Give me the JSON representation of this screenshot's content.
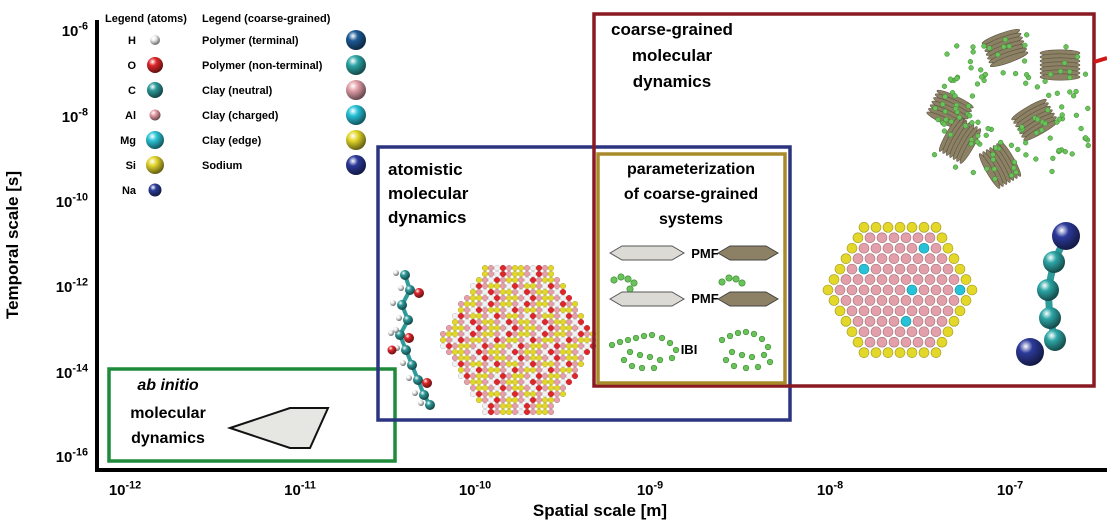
{
  "axes": {
    "y_label": "Temporal scale [s]",
    "x_label": "Spatial scale [m]",
    "y_ticks": [
      {
        "base": "10",
        "exp": "-6"
      },
      {
        "base": "10",
        "exp": "-8"
      },
      {
        "base": "10",
        "exp": "-10"
      },
      {
        "base": "10",
        "exp": "-12"
      },
      {
        "base": "10",
        "exp": "-14"
      },
      {
        "base": "10",
        "exp": "-16"
      }
    ],
    "x_ticks": [
      {
        "base": "10",
        "exp": "-12"
      },
      {
        "base": "10",
        "exp": "-11"
      },
      {
        "base": "10",
        "exp": "-10"
      },
      {
        "base": "10",
        "exp": "-9"
      },
      {
        "base": "10",
        "exp": "-8"
      },
      {
        "base": "10",
        "exp": "-7"
      }
    ]
  },
  "legend_atoms": {
    "title": "Legend (atoms)",
    "items": [
      {
        "label": "H",
        "color": "#f2f2f2"
      },
      {
        "label": "O",
        "color": "#e0262a"
      },
      {
        "label": "C",
        "color": "#2e9a9a"
      },
      {
        "label": "Al",
        "color": "#e8a0a8"
      },
      {
        "label": "Mg",
        "color": "#2cc6d6"
      },
      {
        "label": "Si",
        "color": "#e2d52c"
      },
      {
        "label": "Na",
        "color": "#2c3d9a"
      }
    ]
  },
  "legend_cg": {
    "title": "Legend (coarse-grained)",
    "items": [
      {
        "label": "Polymer (terminal)",
        "color": "#1d5a96"
      },
      {
        "label": "Polymer (non-terminal)",
        "color": "#2ea6a6"
      },
      {
        "label": "Clay (neutral)",
        "color": "#e3a0aa"
      },
      {
        "label": "Clay (charged)",
        "color": "#27c2d8"
      },
      {
        "label": "Clay (edge)",
        "color": "#e3d72a"
      },
      {
        "label": "Sodium",
        "color": "#2c3a9a"
      }
    ]
  },
  "regions": {
    "abinitio": {
      "line1": "ab initio",
      "line2": "molecular",
      "line3": "dynamics",
      "color": "#1f8a3a"
    },
    "atomistic": {
      "line1": "atomistic",
      "line2": "molecular",
      "line3": "dynamics",
      "color": "#2a3480"
    },
    "cg": {
      "line1": "coarse-grained",
      "line2": "molecular",
      "line3": "dynamics",
      "color": "#8a1a22"
    },
    "param": {
      "line1": "parameterization",
      "line2": "of coarse-grained",
      "line3": "systems",
      "color": "#a88a2a"
    }
  },
  "param_methods": {
    "pmf1": "PMF",
    "pmf2": "PMF",
    "ibi": "IBI"
  }
}
